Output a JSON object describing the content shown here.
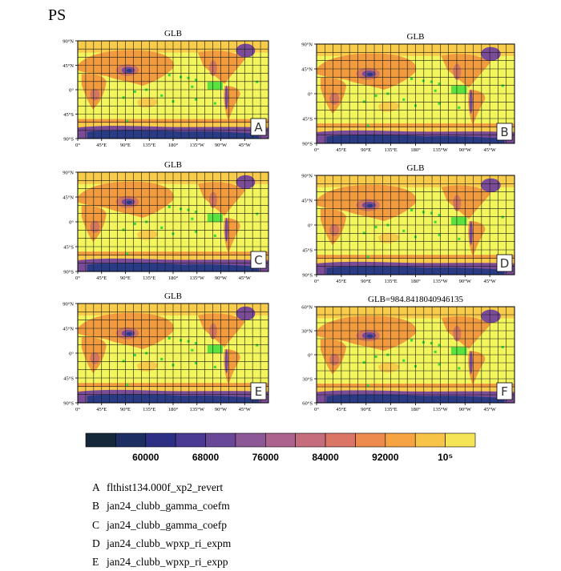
{
  "figure": {
    "main_title": "PS"
  },
  "colors": {
    "ocean": "#f2f55c",
    "warm": "#f8cb4b",
    "orange": "#f19a3e",
    "land_mid": "#d2775e",
    "purple": "#7a4b97",
    "deep": "#2a3b86",
    "grid_line": "#1a1a1a",
    "marker": "#33dd3a"
  },
  "chart_data": [
    {
      "type": "heatmap",
      "panel": "A",
      "title": "GLB",
      "map": "global lat-lon",
      "lat_ticks": [
        "90°N",
        "45°N",
        "0°",
        "45°S",
        "90°S"
      ],
      "lon_ticks": [
        "0°",
        "45°E",
        "90°E",
        "135°E",
        "180°",
        "135°W",
        "90°W",
        "45°W"
      ],
      "grid": true,
      "label": "A"
    },
    {
      "type": "heatmap",
      "panel": "B",
      "title": "GLB",
      "map": "global lat-lon",
      "lat_ticks": [
        "90°N",
        "45°N",
        "0°",
        "45°S",
        "90°S"
      ],
      "lon_ticks": [
        "0°",
        "45°E",
        "90°E",
        "135°E",
        "180°",
        "135°W",
        "90°W",
        "45°W"
      ],
      "grid": true,
      "label": "B"
    },
    {
      "type": "heatmap",
      "panel": "C",
      "title": "GLB",
      "map": "global lat-lon",
      "lat_ticks": [
        "90°N",
        "45°N",
        "0°",
        "45°S",
        "90°S"
      ],
      "lon_ticks": [
        "0°",
        "45°E",
        "90°E",
        "135°E",
        "180°",
        "135°W",
        "90°W",
        "45°W"
      ],
      "grid": true,
      "label": "C"
    },
    {
      "type": "heatmap",
      "panel": "D",
      "title": "GLB",
      "map": "global lat-lon",
      "lat_ticks": [
        "90°N",
        "45°N",
        "0°",
        "45°S",
        "90°S"
      ],
      "lon_ticks": [
        "0°",
        "45°E",
        "90°E",
        "135°E",
        "180°",
        "135°W",
        "90°W",
        "45°W"
      ],
      "grid": true,
      "label": "D"
    },
    {
      "type": "heatmap",
      "panel": "E",
      "title": "GLB",
      "map": "global lat-lon",
      "lat_ticks": [
        "90°N",
        "45°N",
        "0°",
        "45°S",
        "90°S"
      ],
      "lon_ticks": [
        "0°",
        "45°E",
        "90°E",
        "135°E",
        "180°",
        "135°W",
        "90°W",
        "45°W"
      ],
      "grid": true,
      "label": "E"
    },
    {
      "type": "heatmap",
      "panel": "F",
      "title": "GLB=984.8418040946135",
      "map": "global lat-lon",
      "lat_ticks": [
        "60°N",
        "30°N",
        "0°",
        "30°S",
        "60°S"
      ],
      "lon_ticks": [
        "0°",
        "45°E",
        "90°E",
        "135°E",
        "180°",
        "135°W",
        "90°W",
        "45°W"
      ],
      "grid": true,
      "label": "F"
    }
  ],
  "colorbar": {
    "tick_labels": [
      "60000",
      "68000",
      "76000",
      "84000",
      "92000",
      "10⁵"
    ],
    "colors": [
      "#14283a",
      "#1d2e63",
      "#2c2f83",
      "#4a3a93",
      "#6a4898",
      "#8c5896",
      "#ac648f",
      "#c56d7d",
      "#db7566",
      "#ed8a4e",
      "#f6a443",
      "#f7c447",
      "#f4e456"
    ]
  },
  "legend": [
    {
      "key": "A",
      "name": "flthist134.000f_xp2_revert"
    },
    {
      "key": "B",
      "name": "jan24_clubb_gamma_coefm"
    },
    {
      "key": "C",
      "name": "jan24_clubb_gamma_coefp"
    },
    {
      "key": "D",
      "name": "jan24_clubb_wpxp_ri_expm"
    },
    {
      "key": "E",
      "name": "jan24_clubb_wpxp_ri_expp"
    }
  ]
}
